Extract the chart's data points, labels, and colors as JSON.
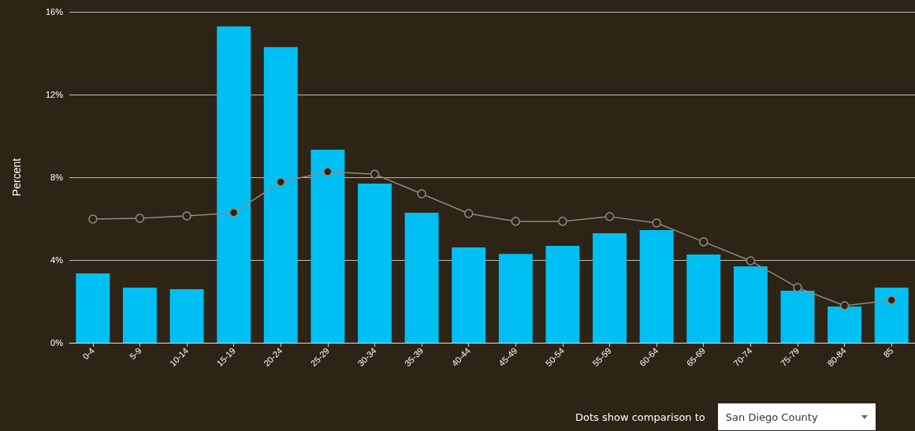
{
  "chart_data": {
    "type": "bar",
    "ylabel": "Percent",
    "categories": [
      "0-4",
      "5-9",
      "10-14",
      "15-19",
      "20-24",
      "25-29",
      "30-34",
      "35-39",
      "40-44",
      "45-49",
      "50-54",
      "55-59",
      "60-64",
      "65-69",
      "70-74",
      "75-79",
      "80-84",
      "85"
    ],
    "series": [
      {
        "color": "#00bff3",
        "values": [
          3.35,
          2.67,
          2.59,
          15.3,
          14.3,
          9.33,
          7.7,
          6.29,
          4.61,
          4.3,
          4.69,
          5.3,
          5.45,
          4.27,
          3.7,
          2.51,
          1.75,
          2.67
        ]
      },
      {
        "type": "line",
        "color": "#8f8a80",
        "marker": "circle",
        "values": [
          5.98,
          6.02,
          6.13,
          6.29,
          7.77,
          8.27,
          8.15,
          7.2,
          6.25,
          5.87,
          5.87,
          6.1,
          5.79,
          4.88,
          3.96,
          2.67,
          1.79,
          2.06
        ]
      }
    ],
    "ylim": [
      0,
      16
    ],
    "yticks": [
      {
        "value": 0,
        "label": "0%"
      },
      {
        "value": 4,
        "label": "4%"
      },
      {
        "value": 8,
        "label": "8%"
      },
      {
        "value": 12,
        "label": "12%"
      },
      {
        "value": 16,
        "label": "16%"
      }
    ],
    "grid": "y",
    "annotations": [
      "Dots show comparison to",
      "San Diego County"
    ]
  }
}
